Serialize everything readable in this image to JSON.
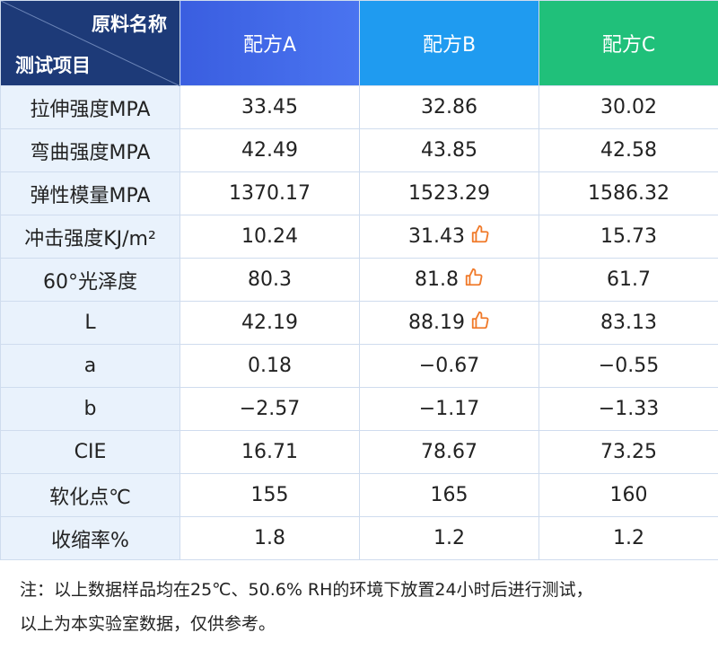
{
  "header": {
    "corner_top": "原料名称",
    "corner_bottom": "测试项目",
    "columns": [
      "配方A",
      "配方B",
      "配方C"
    ]
  },
  "table": {
    "rows": [
      [
        "拉伸强度MPA",
        "33.45",
        "32.86",
        "30.02"
      ],
      [
        "弯曲强度MPA",
        "42.49",
        "43.85",
        "42.58"
      ],
      [
        "弹性模量MPA",
        "1370.17",
        "1523.29",
        "1586.32"
      ],
      [
        "冲击强度KJ/m²",
        "10.24",
        "31.43",
        "15.73"
      ],
      [
        "60°光泽度",
        "80.3",
        "81.8",
        "61.7"
      ],
      [
        "L",
        "42.19",
        "88.19",
        "83.13"
      ],
      [
        "a",
        "0.18",
        "−0.67",
        "−0.55"
      ],
      [
        "b",
        "−2.57",
        "−1.17",
        "−1.33"
      ],
      [
        "CIE",
        "16.71",
        "78.67",
        "73.25"
      ],
      [
        "软化点℃",
        "155",
        "165",
        "160"
      ],
      [
        "收缩率%",
        "1.8",
        "1.2",
        "1.2"
      ]
    ]
  },
  "note": {
    "lines": [
      "注：以上数据样品均在25℃、50.6% RH的环境下放置24小时后进行测试，",
      "以上为本实验室数据，仅供参考。"
    ]
  }
}
